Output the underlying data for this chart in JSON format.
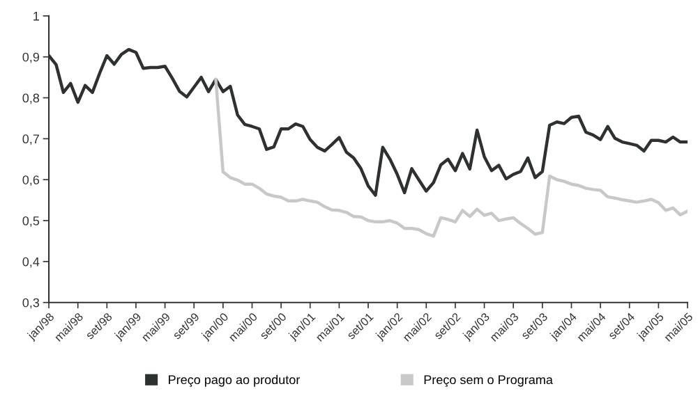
{
  "chart_data": {
    "type": "line",
    "categories": [
      "jan/98",
      null,
      null,
      null,
      "mai/98",
      null,
      null,
      null,
      "set/98",
      null,
      null,
      null,
      "jan/99",
      null,
      null,
      null,
      "mai/99",
      null,
      null,
      null,
      "set/99",
      null,
      null,
      null,
      "jan/00",
      null,
      null,
      null,
      "mai/00",
      null,
      null,
      null,
      "set/00",
      null,
      null,
      null,
      "jan/01",
      null,
      null,
      null,
      "mai/01",
      null,
      null,
      null,
      "set/01",
      null,
      null,
      null,
      "jan/02",
      null,
      null,
      null,
      "mai/02",
      null,
      null,
      null,
      "set/02",
      null,
      null,
      null,
      "jan/03",
      null,
      null,
      null,
      "mai/03",
      null,
      null,
      null,
      "set/03",
      null,
      null,
      null,
      "jan/04",
      null,
      null,
      null,
      "mai/04",
      null,
      null,
      null,
      "set/04",
      null,
      null,
      null,
      "jan/05",
      null,
      null,
      null,
      "mai/05"
    ],
    "series": [
      {
        "name": "Preço pago ao produtor",
        "color": "#2d312f",
        "values": [
          0.903,
          0.881,
          0.813,
          0.835,
          0.789,
          0.83,
          0.813,
          0.86,
          0.903,
          0.882,
          0.906,
          0.918,
          0.911,
          0.872,
          0.874,
          0.874,
          0.877,
          0.848,
          0.816,
          0.802,
          0.826,
          0.85,
          0.815,
          0.845,
          0.815,
          0.828,
          0.758,
          0.735,
          0.73,
          0.724,
          0.674,
          0.68,
          0.724,
          0.724,
          0.736,
          0.73,
          0.698,
          0.679,
          0.67,
          0.686,
          0.703,
          0.667,
          0.653,
          0.627,
          0.585,
          0.562,
          0.679,
          0.65,
          0.613,
          0.568,
          0.627,
          0.599,
          0.572,
          0.593,
          0.636,
          0.65,
          0.622,
          0.664,
          0.626,
          0.721,
          0.656,
          0.622,
          0.635,
          0.602,
          0.613,
          0.62,
          0.653,
          0.605,
          0.62,
          0.733,
          0.741,
          0.737,
          0.752,
          0.755,
          0.716,
          0.709,
          0.698,
          0.73,
          0.701,
          0.692,
          0.688,
          0.684,
          0.67,
          0.696,
          0.696,
          0.692,
          0.704,
          0.692,
          0.692
        ]
      },
      {
        "name": "Preço sem o Programa",
        "color": "#c8c8ca",
        "values": [
          null,
          null,
          null,
          null,
          null,
          null,
          null,
          null,
          null,
          null,
          null,
          null,
          null,
          null,
          null,
          null,
          null,
          null,
          null,
          null,
          null,
          null,
          null,
          0.845,
          0.619,
          0.605,
          0.599,
          0.589,
          0.589,
          0.579,
          0.565,
          0.56,
          0.557,
          0.548,
          0.548,
          0.552,
          0.548,
          0.545,
          0.534,
          0.526,
          0.525,
          0.52,
          0.51,
          0.509,
          0.5,
          0.497,
          0.497,
          0.5,
          0.494,
          0.481,
          0.481,
          0.478,
          0.468,
          0.462,
          0.507,
          0.503,
          0.497,
          0.525,
          0.51,
          0.528,
          0.513,
          0.518,
          0.5,
          0.504,
          0.507,
          0.493,
          0.481,
          0.467,
          0.471,
          0.609,
          0.6,
          0.596,
          0.589,
          0.586,
          0.579,
          0.576,
          0.574,
          0.558,
          0.555,
          0.551,
          0.548,
          0.545,
          0.548,
          0.552,
          0.544,
          0.525,
          0.531,
          0.514,
          0.523
        ]
      }
    ],
    "ylim": [
      0.3,
      1
    ],
    "yticks": [
      {
        "value": 0.3,
        "label": "0,3"
      },
      {
        "value": 0.4,
        "label": "0,4"
      },
      {
        "value": 0.5,
        "label": "0,5"
      },
      {
        "value": 0.6,
        "label": "0,6"
      },
      {
        "value": 0.7,
        "label": "0,7"
      },
      {
        "value": 0.8,
        "label": "0,8"
      },
      {
        "value": 0.9,
        "label": "0,9"
      },
      1
    ],
    "grid": false,
    "legend": "bottom",
    "marker": "none",
    "line_style": "solid"
  }
}
